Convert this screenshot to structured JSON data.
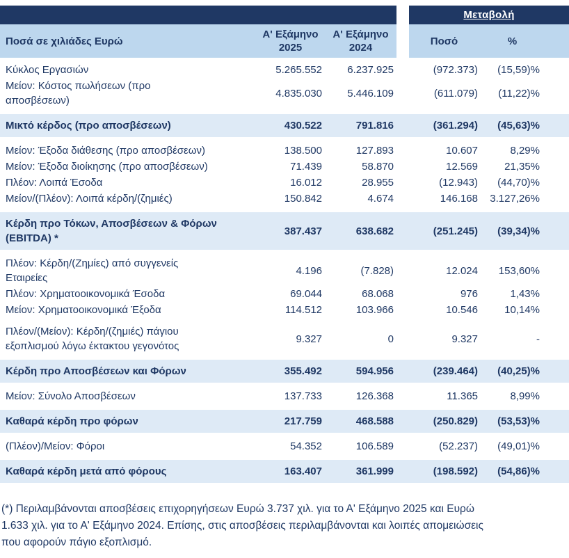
{
  "header": {
    "change_group": "Μεταβολή",
    "col_label": "Ποσά σε χιλιάδες Ευρώ",
    "col_2025": "Α' Εξάμηνο\n2025",
    "col_2024": "Α' Εξάμηνο\n2024",
    "col_amount": "Ποσό",
    "col_pct": "%"
  },
  "colors": {
    "dark_navy": "#1F3864",
    "header_blue": "#BDD7EE",
    "total_row_blue": "#DEEAF6",
    "text": "#1F3864"
  },
  "rows": [
    {
      "type": "normal",
      "label": "Κύκλος Εργασιών",
      "v2025": "5.265.552",
      "v2024": "6.237.925",
      "amount": "(972.373)",
      "pct": "(15,59)%"
    },
    {
      "type": "normal",
      "label": "Μείον: Κόστος πωλήσεων (προ\nαποσβέσεων)",
      "v2025": "4.835.030",
      "v2024": "5.446.109",
      "amount": "(611.079)",
      "pct": "(11,22)%"
    },
    {
      "type": "total",
      "label": "Μικτό κέρδος (προ αποσβέσεων)",
      "v2025": "430.522",
      "v2024": "791.816",
      "amount": "(361.294)",
      "pct": "(45,63)%"
    },
    {
      "type": "normal",
      "label": "Μείον: Έξοδα διάθεσης (προ αποσβέσεων)",
      "v2025": "138.500",
      "v2024": "127.893",
      "amount": "10.607",
      "pct": "8,29%"
    },
    {
      "type": "normal",
      "label": "Μείον: Έξοδα διοίκησης (προ αποσβέσεων)",
      "v2025": "71.439",
      "v2024": "58.870",
      "amount": "12.569",
      "pct": "21,35%"
    },
    {
      "type": "normal",
      "label": "Πλέον: Λοιπά Έσοδα",
      "v2025": "16.012",
      "v2024": "28.955",
      "amount": "(12.943)",
      "pct": "(44,70)%"
    },
    {
      "type": "normal",
      "label": "Μείον/(Πλέον): Λοιπά κέρδη/(ζημιές)",
      "v2025": "150.842",
      "v2024": "4.674",
      "amount": "146.168",
      "pct": "3.127,26%"
    },
    {
      "type": "total",
      "label": "Κέρδη προ Τόκων, Αποσβέσεων & Φόρων\n(EBITDA) *",
      "v2025": "387.437",
      "v2024": "638.682",
      "amount": "(251.245)",
      "pct": "(39,34)%"
    },
    {
      "type": "normal",
      "label": "Πλέον: Κέρδη/(Ζημίες) από συγγενείς\nΕταιρείες",
      "v2025": "4.196",
      "v2024": "(7.828)",
      "amount": "12.024",
      "pct": "153,60%"
    },
    {
      "type": "normal",
      "label": "Πλέον: Χρηματοοικονομικά Έσοδα",
      "v2025": "69.044",
      "v2024": "68.068",
      "amount": "976",
      "pct": "1,43%"
    },
    {
      "type": "normal",
      "label": "Μείον: Χρηματοοικονομικά Έξοδα",
      "v2025": "114.512",
      "v2024": "103.966",
      "amount": "10.546",
      "pct": "10,14%"
    },
    {
      "type": "normal",
      "spacer_before": true,
      "label": "Πλέον/(Μείον): Κέρδη/(ζημιές) πάγιου\nεξοπλισμού λόγω έκτακτου γεγονότος",
      "v2025": "9.327",
      "v2024": "0",
      "amount": "9.327",
      "pct": "-"
    },
    {
      "type": "total",
      "label": "Κέρδη προ Αποσβέσεων και Φόρων",
      "v2025": "355.492",
      "v2024": "594.956",
      "amount": "(239.464)",
      "pct": "(40,25)%"
    },
    {
      "type": "normal",
      "label": "Μείον: Σύνολο Αποσβέσεων",
      "v2025": "137.733",
      "v2024": "126.368",
      "amount": "11.365",
      "pct": "8,99%"
    },
    {
      "type": "total",
      "label": "Καθαρά κέρδη προ φόρων",
      "v2025": "217.759",
      "v2024": "468.588",
      "amount": "(250.829)",
      "pct": "(53,53)%"
    },
    {
      "type": "normal",
      "label": "(Πλέον)/Μείον: Φόροι",
      "v2025": "54.352",
      "v2024": "106.589",
      "amount": "(52.237)",
      "pct": "(49,01)%"
    },
    {
      "type": "total",
      "label": "Καθαρά κέρδη μετά από φόρους",
      "v2025": "163.407",
      "v2024": "361.999",
      "amount": "(198.592)",
      "pct": "(54,86)%"
    }
  ],
  "footnote": "(*) Περιλαμβάνονται αποσβέσεις επιχορηγήσεων Ευρώ 3.737 χιλ. για το Α' Εξάμηνο 2025 και Ευρώ\n1.633 χιλ. για το Α' Εξάμηνο 2024. Επίσης, στις αποσβέσεις περιλαμβάνονται και λοιπές απομειώσεις\nπου αφορούν πάγιο εξοπλισμό."
}
